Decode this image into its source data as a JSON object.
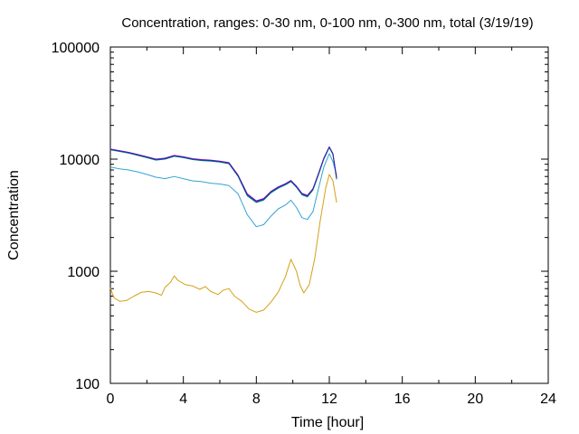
{
  "chart_data": {
    "type": "line",
    "title": "Concentration, ranges: 0-30 nm, 0-100 nm, 0-300 nm, total (3/19/19)",
    "xlabel": "Time [hour]",
    "ylabel": "Concentration",
    "xlim": [
      0,
      24
    ],
    "ylim": [
      100,
      100000
    ],
    "yscale": "log",
    "grid": false,
    "x_ticks": [
      "0",
      "4",
      "8",
      "12",
      "16",
      "20",
      "24"
    ],
    "y_ticks": [
      "100",
      "1000",
      "10000",
      "100000"
    ],
    "series": [
      {
        "color": "#d4a017",
        "points": [
          [
            0,
            710
          ],
          [
            0.2,
            580
          ],
          [
            0.5,
            540
          ],
          [
            0.9,
            550
          ],
          [
            1.3,
            600
          ],
          [
            1.7,
            650
          ],
          [
            2.1,
            660
          ],
          [
            2.5,
            640
          ],
          [
            2.8,
            610
          ],
          [
            3.0,
            720
          ],
          [
            3.3,
            800
          ],
          [
            3.5,
            910
          ],
          [
            3.7,
            830
          ],
          [
            4.1,
            760
          ],
          [
            4.5,
            740
          ],
          [
            4.9,
            690
          ],
          [
            5.2,
            730
          ],
          [
            5.5,
            660
          ],
          [
            5.9,
            620
          ],
          [
            6.2,
            680
          ],
          [
            6.5,
            700
          ],
          [
            6.8,
            600
          ],
          [
            7.2,
            540
          ],
          [
            7.6,
            460
          ],
          [
            8.0,
            430
          ],
          [
            8.4,
            450
          ],
          [
            8.8,
            530
          ],
          [
            9.2,
            650
          ],
          [
            9.6,
            900
          ],
          [
            9.9,
            1280
          ],
          [
            10.2,
            1000
          ],
          [
            10.4,
            750
          ],
          [
            10.6,
            640
          ],
          [
            10.9,
            760
          ],
          [
            11.2,
            1300
          ],
          [
            11.5,
            2800
          ],
          [
            11.8,
            5500
          ],
          [
            12.0,
            7300
          ],
          [
            12.2,
            6400
          ],
          [
            12.4,
            4100
          ]
        ]
      },
      {
        "color": "#33a3d4",
        "points": [
          [
            0,
            8500
          ],
          [
            0.5,
            8200
          ],
          [
            1,
            8000
          ],
          [
            1.5,
            7700
          ],
          [
            2,
            7300
          ],
          [
            2.5,
            6900
          ],
          [
            3,
            6700
          ],
          [
            3.5,
            7000
          ],
          [
            4,
            6700
          ],
          [
            4.5,
            6400
          ],
          [
            5,
            6300
          ],
          [
            5.5,
            6100
          ],
          [
            6,
            6000
          ],
          [
            6.5,
            5800
          ],
          [
            7,
            4900
          ],
          [
            7.5,
            3200
          ],
          [
            8,
            2500
          ],
          [
            8.4,
            2600
          ],
          [
            8.8,
            3100
          ],
          [
            9.2,
            3600
          ],
          [
            9.6,
            3900
          ],
          [
            9.9,
            4300
          ],
          [
            10.2,
            3700
          ],
          [
            10.5,
            3000
          ],
          [
            10.8,
            2900
          ],
          [
            11.1,
            3400
          ],
          [
            11.4,
            5400
          ],
          [
            11.7,
            8500
          ],
          [
            12.0,
            11200
          ],
          [
            12.2,
            9500
          ],
          [
            12.4,
            7200
          ]
        ]
      },
      {
        "color": "#009e73",
        "points": [
          [
            0,
            12100
          ],
          [
            0.5,
            11700
          ],
          [
            1,
            11300
          ],
          [
            1.5,
            10800
          ],
          [
            2,
            10300
          ],
          [
            2.5,
            9800
          ],
          [
            3,
            10000
          ],
          [
            3.5,
            10600
          ],
          [
            4,
            10300
          ],
          [
            4.5,
            9900
          ],
          [
            5,
            9700
          ],
          [
            5.5,
            9600
          ],
          [
            6,
            9400
          ],
          [
            6.5,
            9100
          ],
          [
            7,
            7000
          ],
          [
            7.5,
            4700
          ],
          [
            8,
            4100
          ],
          [
            8.4,
            4300
          ],
          [
            8.8,
            5000
          ],
          [
            9.2,
            5500
          ],
          [
            9.6,
            5900
          ],
          [
            9.9,
            6300
          ],
          [
            10.2,
            5600
          ],
          [
            10.5,
            4800
          ],
          [
            10.8,
            4600
          ],
          [
            11.1,
            5300
          ],
          [
            11.4,
            7200
          ],
          [
            11.7,
            10000
          ],
          [
            12.0,
            12700
          ],
          [
            12.2,
            11000
          ],
          [
            12.4,
            6600
          ]
        ]
      },
      {
        "color": "#9400d3",
        "points": [
          [
            0,
            12300
          ],
          [
            0.5,
            11900
          ],
          [
            1,
            11500
          ],
          [
            1.5,
            11000
          ],
          [
            2,
            10500
          ],
          [
            2.5,
            10000
          ],
          [
            3,
            10200
          ],
          [
            3.5,
            10800
          ],
          [
            4,
            10500
          ],
          [
            4.5,
            10100
          ],
          [
            5,
            9900
          ],
          [
            5.5,
            9800
          ],
          [
            6,
            9600
          ],
          [
            6.5,
            9300
          ],
          [
            7,
            7200
          ],
          [
            7.5,
            4900
          ],
          [
            8,
            4250
          ],
          [
            8.4,
            4450
          ],
          [
            8.8,
            5150
          ],
          [
            9.2,
            5650
          ],
          [
            9.6,
            6050
          ],
          [
            9.9,
            6450
          ],
          [
            10.2,
            5750
          ],
          [
            10.5,
            4950
          ],
          [
            10.8,
            4750
          ],
          [
            11.1,
            5450
          ],
          [
            11.4,
            7400
          ],
          [
            11.7,
            10200
          ],
          [
            12.0,
            12900
          ],
          [
            12.2,
            11200
          ],
          [
            12.4,
            6800
          ]
        ]
      },
      {
        "color": "#1f2fa8",
        "points": [
          [
            0,
            12200
          ],
          [
            0.5,
            11800
          ],
          [
            1,
            11400
          ],
          [
            1.5,
            10900
          ],
          [
            2,
            10400
          ],
          [
            2.5,
            9900
          ],
          [
            3,
            10100
          ],
          [
            3.5,
            10700
          ],
          [
            4,
            10400
          ],
          [
            4.5,
            10000
          ],
          [
            5,
            9800
          ],
          [
            5.5,
            9700
          ],
          [
            6,
            9500
          ],
          [
            6.5,
            9200
          ],
          [
            7,
            7100
          ],
          [
            7.5,
            4800
          ],
          [
            8,
            4180
          ],
          [
            8.4,
            4380
          ],
          [
            8.8,
            5080
          ],
          [
            9.2,
            5580
          ],
          [
            9.6,
            5980
          ],
          [
            9.9,
            6380
          ],
          [
            10.2,
            5680
          ],
          [
            10.5,
            4880
          ],
          [
            10.8,
            4680
          ],
          [
            11.1,
            5380
          ],
          [
            11.4,
            7300
          ],
          [
            11.7,
            10100
          ],
          [
            12.0,
            12800
          ],
          [
            12.2,
            11100
          ],
          [
            12.4,
            6700
          ]
        ]
      }
    ]
  }
}
